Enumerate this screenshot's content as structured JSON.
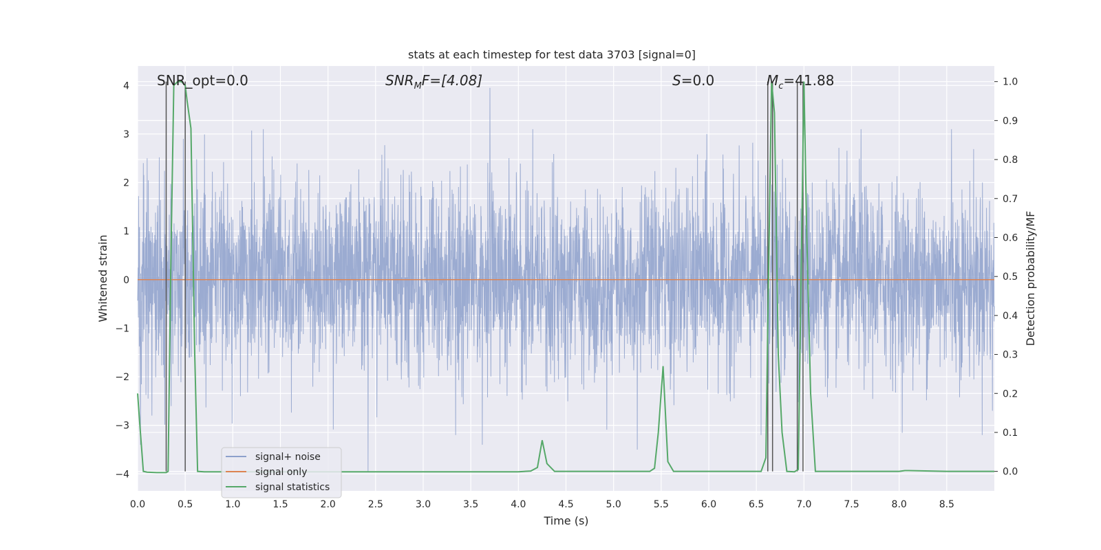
{
  "chart_data": {
    "type": "line",
    "title": "stats at each timestep for test data 3703 [signal=0]",
    "xlabel": "Time (s)",
    "ylabel": "Whitened strain",
    "ylabel_right": "Detection probability/MF",
    "xlim": [
      0.0,
      9.0
    ],
    "ylim": [
      -4.35,
      4.4
    ],
    "ylim_right": [
      -0.05,
      1.04
    ],
    "x_ticks": [
      "0.0",
      "0.5",
      "1.0",
      "1.5",
      "2.0",
      "2.5",
      "3.0",
      "3.5",
      "4.0",
      "4.5",
      "5.0",
      "5.5",
      "6.0",
      "6.5",
      "7.0",
      "7.5",
      "8.0",
      "8.5"
    ],
    "y_ticks": [
      "−4",
      "−3",
      "−2",
      "−1",
      "0",
      "1",
      "2",
      "3",
      "4"
    ],
    "y_ticks_right": [
      "0.0",
      "0.1",
      "0.2",
      "0.3",
      "0.4",
      "0.5",
      "0.6",
      "0.7",
      "0.8",
      "0.9",
      "1.0"
    ],
    "annotations": {
      "snr_opt": "SNR_opt=0.0",
      "snr_mf_base": "SNR",
      "snr_mf_sub": "M",
      "snr_mf_rest": "F=[4.08]",
      "s_base": "S",
      "s_rest": "=0.0",
      "mc_base": "M",
      "mc_sub": "c",
      "mc_rest": "=41.88"
    },
    "legend": [
      "signal+ noise",
      "signal only",
      "signal statistics"
    ],
    "colors": {
      "noise": "#8da0cb",
      "signal_only": "#dd8452",
      "statistics": "#55a868",
      "vlines": "#555555",
      "plot_bg": "#eaeaf2",
      "grid": "#ffffff"
    },
    "series": [
      {
        "name": "signal statistics",
        "axis": "right",
        "x": [
          0.0,
          0.02,
          0.06,
          0.1,
          0.2,
          0.3,
          0.32,
          0.35,
          0.38,
          0.42,
          0.46,
          0.5,
          0.52,
          0.56,
          0.6,
          0.63,
          0.7,
          1.0,
          2.0,
          3.0,
          4.0,
          4.13,
          4.2,
          4.25,
          4.3,
          4.38,
          4.5,
          5.0,
          5.38,
          5.43,
          5.47,
          5.52,
          5.57,
          5.63,
          5.7,
          6.0,
          6.55,
          6.6,
          6.62,
          6.66,
          6.69,
          6.73,
          6.77,
          6.82,
          6.9,
          6.94,
          6.97,
          7.0,
          7.03,
          7.07,
          7.12,
          7.2,
          7.5,
          8.0,
          8.06,
          8.1,
          8.5,
          9.0
        ],
        "y": [
          0.2,
          0.13,
          0.0,
          -0.002,
          -0.003,
          -0.003,
          0.0,
          0.55,
          0.99,
          1.0,
          1.0,
          0.99,
          0.95,
          0.88,
          0.3,
          0.0,
          -0.001,
          -0.001,
          -0.001,
          -0.001,
          -0.001,
          0.001,
          0.01,
          0.08,
          0.02,
          0.0,
          0.0,
          0.0,
          0.0,
          0.008,
          0.1,
          0.27,
          0.025,
          0.0,
          0.0,
          0.0,
          0.0,
          0.035,
          0.38,
          1.0,
          0.92,
          0.3,
          0.1,
          0.0,
          -0.001,
          0.005,
          0.5,
          1.0,
          0.6,
          0.2,
          0.0,
          0.0,
          0.0,
          0.0,
          0.002,
          0.002,
          0.0,
          0.0
        ]
      },
      {
        "name": "signal only",
        "axis": "left",
        "x": [
          0.0,
          9.0
        ],
        "y": [
          0.0,
          0.0
        ]
      }
    ],
    "vertical_lines_x": [
      0.3,
      0.5,
      6.62,
      6.67,
      6.93,
      6.99
    ],
    "noise_series": {
      "name": "signal+ noise",
      "axis": "left",
      "description_seed": 3703,
      "sigma": 0.95,
      "peak_x": [
        0.03,
        0.06,
        0.1,
        0.15,
        0.48,
        1.08,
        1.32,
        2.42,
        3.62,
        3.7,
        4.15,
        4.3,
        5.25,
        5.98,
        6.55,
        7.6,
        8.55,
        8.98
      ],
      "peak_y": [
        -3.4,
        2.4,
        2.5,
        -2.8,
        2.9,
        -2.4,
        3.1,
        -3.95,
        -3.4,
        3.95,
        3.1,
        -2.3,
        -3.5,
        3.0,
        -3.2,
        3.1,
        3.1,
        -2.7
      ]
    }
  }
}
